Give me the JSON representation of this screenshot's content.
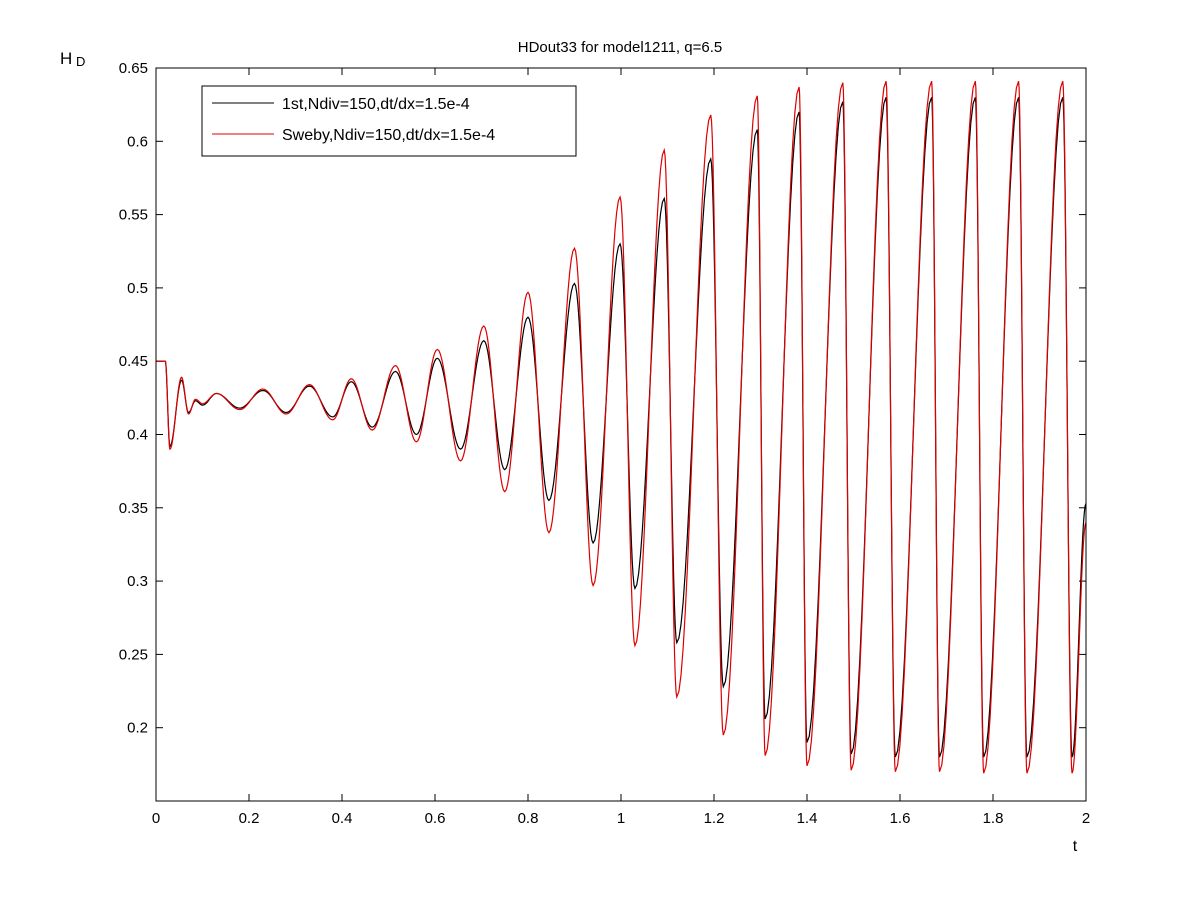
{
  "chart_data": {
    "type": "line",
    "title": "HDout33 for model1211, q=6.5",
    "xlabel": "t",
    "ylabel_main": "H",
    "ylabel_sub": "D",
    "xlim": [
      0,
      2
    ],
    "ylim": [
      0.15,
      0.65
    ],
    "x_ticks": [
      0,
      0.2,
      0.4,
      0.6,
      0.8,
      1,
      1.2,
      1.4,
      1.6,
      1.8,
      2
    ],
    "x_tick_labels": [
      "0",
      "0.2",
      "0.4",
      "0.6",
      "0.8",
      "1",
      "1.2",
      "1.4",
      "1.6",
      "1.8",
      "2"
    ],
    "y_ticks": [
      0.2,
      0.25,
      0.3,
      0.35,
      0.4,
      0.45,
      0.5,
      0.55,
      0.6,
      0.65
    ],
    "y_tick_labels": [
      "0.2",
      "0.25",
      "0.3",
      "0.35",
      "0.4",
      "0.45",
      "0.5",
      "0.55",
      "0.6",
      "0.65"
    ],
    "grid": false,
    "legend_position": "top-left",
    "series": [
      {
        "name": "1st,Ndiv=150,dt/dx=1.5e-4",
        "color": "#000000",
        "extrema": [
          [
            0.0,
            0.45
          ],
          [
            0.02,
            0.45
          ],
          [
            0.03,
            0.392
          ],
          [
            0.055,
            0.437
          ],
          [
            0.07,
            0.415
          ],
          [
            0.085,
            0.423
          ],
          [
            0.1,
            0.42
          ],
          [
            0.13,
            0.428
          ],
          [
            0.18,
            0.418
          ],
          [
            0.23,
            0.43
          ],
          [
            0.28,
            0.415
          ],
          [
            0.33,
            0.433
          ],
          [
            0.38,
            0.412
          ],
          [
            0.42,
            0.436
          ],
          [
            0.465,
            0.405
          ],
          [
            0.515,
            0.443
          ],
          [
            0.56,
            0.4
          ],
          [
            0.605,
            0.452
          ],
          [
            0.655,
            0.39
          ],
          [
            0.705,
            0.464
          ],
          [
            0.75,
            0.376
          ],
          [
            0.8,
            0.48
          ],
          [
            0.845,
            0.355
          ],
          [
            0.9,
            0.503
          ],
          [
            0.94,
            0.326
          ],
          [
            0.998,
            0.53
          ],
          [
            1.03,
            0.295
          ],
          [
            1.093,
            0.561
          ],
          [
            1.12,
            0.258
          ],
          [
            1.193,
            0.588
          ],
          [
            1.22,
            0.228
          ],
          [
            1.293,
            0.608
          ],
          [
            1.31,
            0.206
          ],
          [
            1.383,
            0.62
          ],
          [
            1.4,
            0.19
          ],
          [
            1.477,
            0.627
          ],
          [
            1.495,
            0.182
          ],
          [
            1.57,
            0.63
          ],
          [
            1.59,
            0.18
          ],
          [
            1.668,
            0.63
          ],
          [
            1.685,
            0.18
          ],
          [
            1.762,
            0.63
          ],
          [
            1.78,
            0.18
          ],
          [
            1.855,
            0.63
          ],
          [
            1.873,
            0.18
          ],
          [
            1.95,
            0.63
          ],
          [
            1.97,
            0.18
          ],
          [
            2.0,
            0.353
          ]
        ]
      },
      {
        "name": "Sweby,Ndiv=150,dt/dx=1.5e-4",
        "color": "#dd0000",
        "extrema": [
          [
            0.0,
            0.45
          ],
          [
            0.02,
            0.45
          ],
          [
            0.03,
            0.39
          ],
          [
            0.055,
            0.439
          ],
          [
            0.07,
            0.414
          ],
          [
            0.085,
            0.424
          ],
          [
            0.1,
            0.421
          ],
          [
            0.13,
            0.428
          ],
          [
            0.18,
            0.417
          ],
          [
            0.23,
            0.431
          ],
          [
            0.28,
            0.414
          ],
          [
            0.33,
            0.434
          ],
          [
            0.38,
            0.41
          ],
          [
            0.42,
            0.438
          ],
          [
            0.465,
            0.403
          ],
          [
            0.515,
            0.447
          ],
          [
            0.56,
            0.395
          ],
          [
            0.605,
            0.458
          ],
          [
            0.655,
            0.382
          ],
          [
            0.705,
            0.474
          ],
          [
            0.75,
            0.361
          ],
          [
            0.8,
            0.497
          ],
          [
            0.845,
            0.333
          ],
          [
            0.9,
            0.527
          ],
          [
            0.94,
            0.297
          ],
          [
            0.998,
            0.562
          ],
          [
            1.03,
            0.256
          ],
          [
            1.093,
            0.594
          ],
          [
            1.12,
            0.221
          ],
          [
            1.193,
            0.618
          ],
          [
            1.22,
            0.195
          ],
          [
            1.293,
            0.631
          ],
          [
            1.31,
            0.181
          ],
          [
            1.383,
            0.637
          ],
          [
            1.4,
            0.174
          ],
          [
            1.477,
            0.64
          ],
          [
            1.495,
            0.171
          ],
          [
            1.57,
            0.641
          ],
          [
            1.59,
            0.17
          ],
          [
            1.668,
            0.641
          ],
          [
            1.685,
            0.17
          ],
          [
            1.762,
            0.641
          ],
          [
            1.78,
            0.169
          ],
          [
            1.855,
            0.641
          ],
          [
            1.873,
            0.169
          ],
          [
            1.95,
            0.641
          ],
          [
            1.97,
            0.169
          ],
          [
            2.0,
            0.34
          ]
        ]
      }
    ]
  }
}
